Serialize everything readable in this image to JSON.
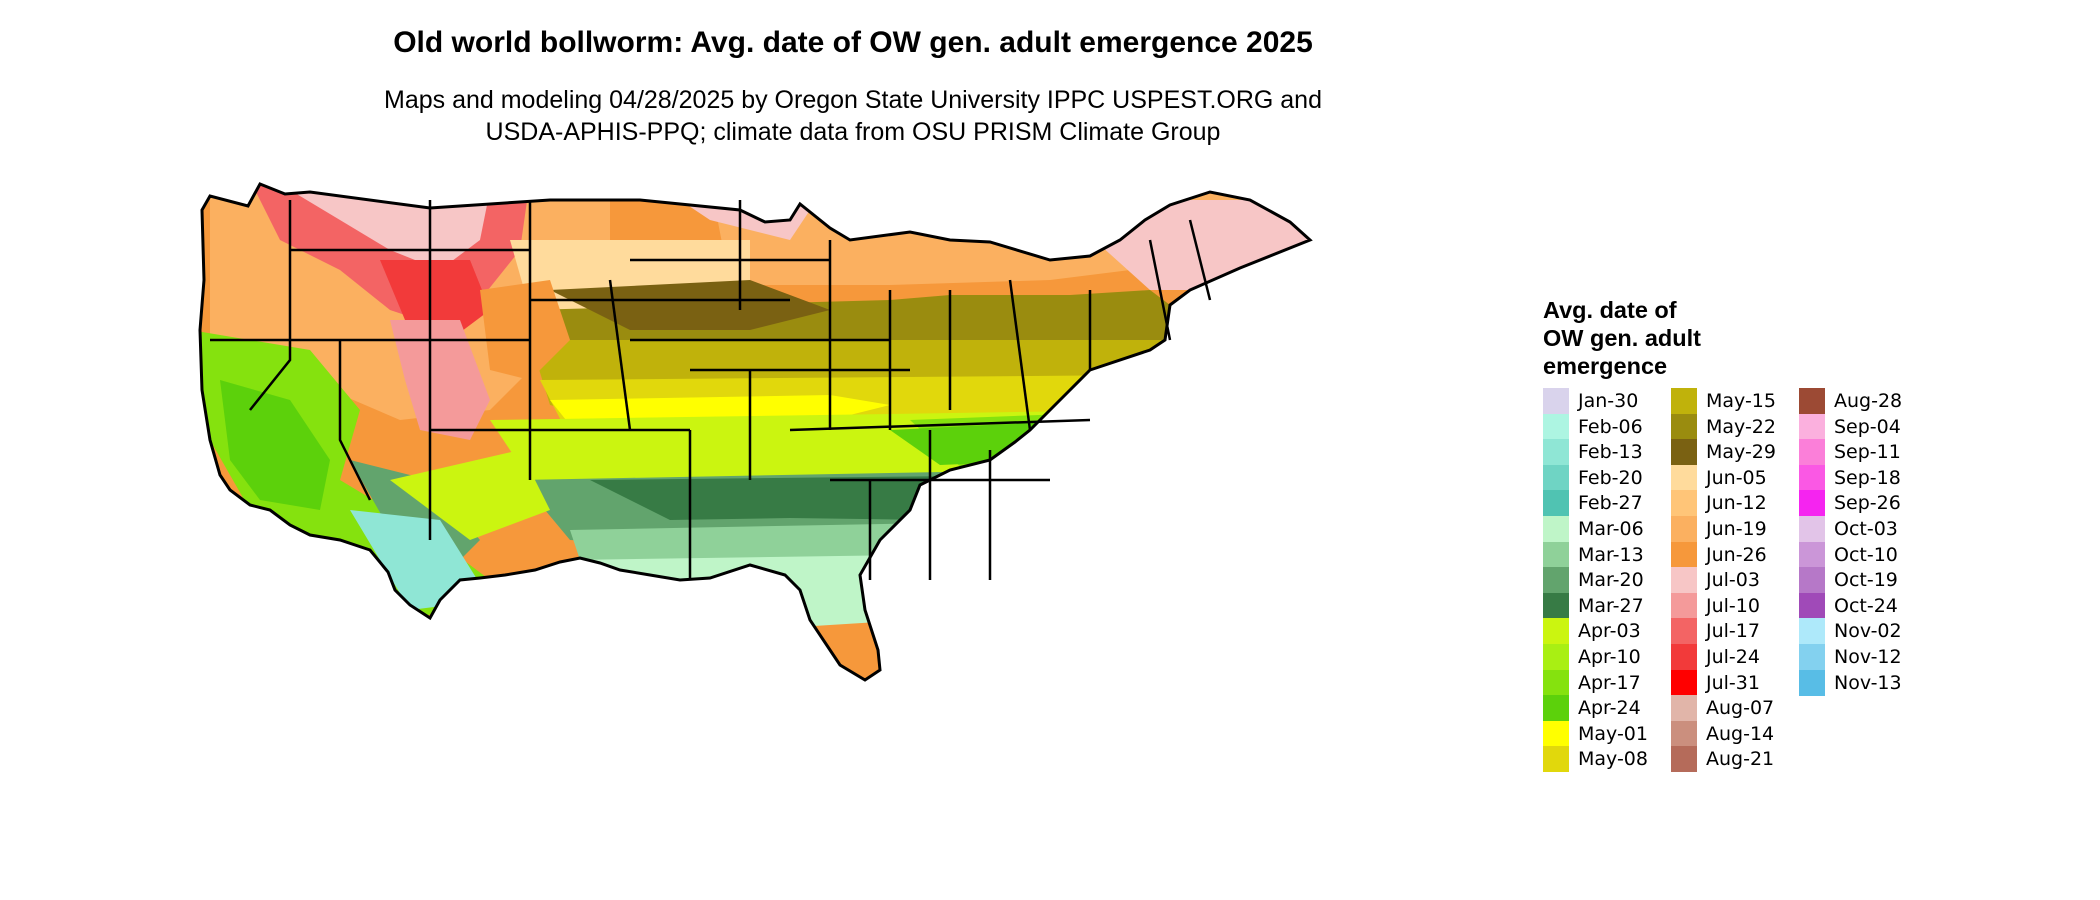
{
  "title": "Old world bollworm: Avg. date of OW gen. adult emergence 2025",
  "subtitle": [
    "Maps and modeling 04/28/2025 by Oregon State University IPPC USPEST.ORG and",
    "USDA-APHIS-PPQ; climate data from OSU PRISM Climate Group"
  ],
  "legend": {
    "title": [
      "Avg. date of",
      "OW gen. adult",
      "emergence"
    ],
    "items": [
      {
        "label": "Jan-30",
        "color": "#d9d3ec"
      },
      {
        "label": "Feb-06",
        "color": "#adf5e2"
      },
      {
        "label": "Feb-13",
        "color": "#8fe6d5"
      },
      {
        "label": "Feb-20",
        "color": "#6fd4c4"
      },
      {
        "label": "Feb-27",
        "color": "#50c3b2"
      },
      {
        "label": "Mar-06",
        "color": "#bff5c8"
      },
      {
        "label": "Mar-13",
        "color": "#8fd199"
      },
      {
        "label": "Mar-20",
        "color": "#62a46d"
      },
      {
        "label": "Mar-27",
        "color": "#377b45"
      },
      {
        "label": "Apr-03",
        "color": "#cbf510"
      },
      {
        "label": "Apr-10",
        "color": "#a9ef13"
      },
      {
        "label": "Apr-17",
        "color": "#85e20e"
      },
      {
        "label": "Apr-24",
        "color": "#5cd10b"
      },
      {
        "label": "May-01",
        "color": "#ffff00"
      },
      {
        "label": "May-08",
        "color": "#e1d80c"
      },
      {
        "label": "May-15",
        "color": "#c0b20b"
      },
      {
        "label": "May-22",
        "color": "#9a8c0f"
      },
      {
        "label": "May-29",
        "color": "#7a6112"
      },
      {
        "label": "Jun-05",
        "color": "#ffdb9c"
      },
      {
        "label": "Jun-12",
        "color": "#ffc578"
      },
      {
        "label": "Jun-19",
        "color": "#fbb060"
      },
      {
        "label": "Jun-26",
        "color": "#f6983b"
      },
      {
        "label": "Jul-03",
        "color": "#f7c6c6"
      },
      {
        "label": "Jul-10",
        "color": "#f49a9a"
      },
      {
        "label": "Jul-17",
        "color": "#f36464"
      },
      {
        "label": "Jul-24",
        "color": "#f23a3a"
      },
      {
        "label": "Jul-31",
        "color": "#ff0000"
      },
      {
        "label": "Aug-07",
        "color": "#e1b5a9"
      },
      {
        "label": "Aug-14",
        "color": "#cb8f7e"
      },
      {
        "label": "Aug-21",
        "color": "#b56b5a"
      },
      {
        "label": "Aug-28",
        "color": "#9c4a34"
      },
      {
        "label": "Sep-04",
        "color": "#fbb0de"
      },
      {
        "label": "Sep-11",
        "color": "#fb7fd9"
      },
      {
        "label": "Sep-18",
        "color": "#fa58e4"
      },
      {
        "label": "Sep-26",
        "color": "#f524f0"
      },
      {
        "label": "Oct-03",
        "color": "#e2c4e8"
      },
      {
        "label": "Oct-10",
        "color": "#cb96d8"
      },
      {
        "label": "Oct-19",
        "color": "#b678c8"
      },
      {
        "label": "Oct-24",
        "color": "#a04ab8"
      },
      {
        "label": "Nov-02",
        "color": "#aee9fa"
      },
      {
        "label": "Nov-12",
        "color": "#83d1ef"
      },
      {
        "label": "Nov-13",
        "color": "#58bde6"
      }
    ]
  }
}
